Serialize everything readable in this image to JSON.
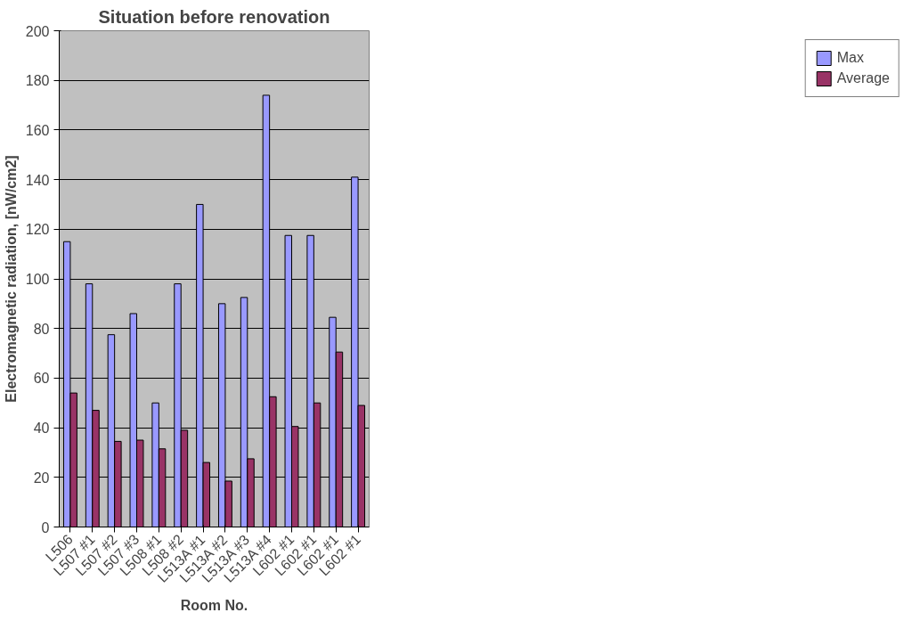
{
  "chart_data": {
    "type": "bar",
    "title": "Situation before renovation",
    "xlabel": "Room No.",
    "ylabel": "Electromagnetic radiation, [nW/cm2]",
    "categories": [
      "L506",
      "L507 #1",
      "L507 #2",
      "L507 #3",
      "L508 #1",
      "L508 #2",
      "L513A #1",
      "L513A #2",
      "L513A #3",
      "L513A #4",
      "L602 #1",
      "L602 #1",
      "L602 #1",
      "L602 #1"
    ],
    "series": [
      {
        "name": "Max",
        "color": "#9999ff",
        "values": [
          115,
          98,
          77.5,
          86,
          50,
          98,
          130,
          90,
          92.5,
          174,
          117.5,
          117.5,
          84.5,
          141
        ]
      },
      {
        "name": "Average",
        "color": "#993366",
        "values": [
          54,
          47,
          34.5,
          35,
          31.5,
          39,
          26,
          18.5,
          27.5,
          52.5,
          40.5,
          50,
          70.5,
          49
        ]
      }
    ],
    "ylim": [
      0,
      200
    ],
    "yticks": [
      0,
      20,
      40,
      60,
      80,
      100,
      120,
      140,
      160,
      180,
      200
    ],
    "grid": "y",
    "legend": "right"
  }
}
